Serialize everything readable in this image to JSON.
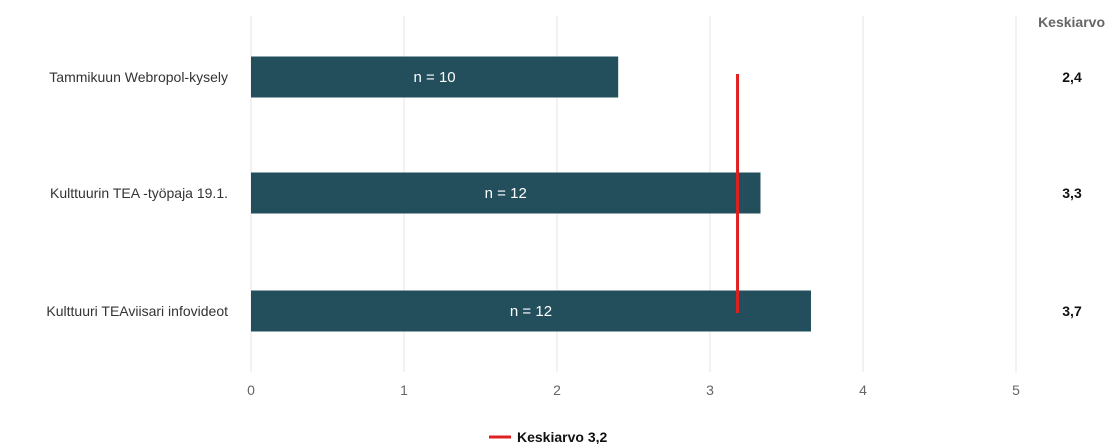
{
  "chart_data": {
    "type": "bar",
    "orientation": "horizontal",
    "categories": [
      "Tammikuun Webropol-kysely",
      "Kulttuurin TEA -työpaja 19.1.",
      "Kulttuuri TEAviisari infovideot"
    ],
    "values": [
      2.4,
      3.33,
      3.66
    ],
    "bar_labels": [
      "n = 10",
      "n = 12",
      "n = 12"
    ],
    "value_labels": [
      "2,4",
      "3,3",
      "3,7"
    ],
    "value_column_header": "Keskiarvo",
    "xlim": [
      0,
      5
    ],
    "xticks": [
      "0",
      "1",
      "2",
      "3",
      "4",
      "5"
    ],
    "grid": true,
    "reference_line": {
      "value": 3.18,
      "label": "Keskiarvo 3,2",
      "color": "#e02020"
    },
    "legend_position": "bottom",
    "colors": {
      "bar": "#234e5c",
      "grid": "#e6e6e6"
    }
  }
}
